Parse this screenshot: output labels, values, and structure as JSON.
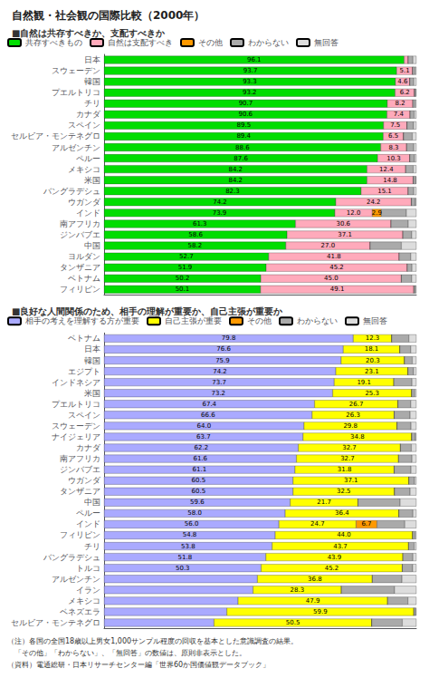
{
  "title": "自然観・社会観の国際比較（2000年）",
  "annotations": [
    "（注）各国の全国18歳以上男女1,000サンプル程度の回収を基本とした意識調査の結果。",
    "　「その他」「わからない」、「無回答」の数値は、原則非表示とした。",
    "（資料）電通総研・日本リサーチセンター編「世界60か国価値観データブック」"
  ],
  "chart_data": [
    {
      "type": "bar",
      "orientation": "horizontal",
      "stacked": true,
      "title": "■自然は共存すべきか、支配すべきか",
      "categories": [
        "日本",
        "スウェーデン",
        "韓国",
        "プエルトリコ",
        "チリ",
        "カナダ",
        "スペイン",
        "セルビア・モンテネグロ",
        "アルゼンチン",
        "ペルー",
        "メキシコ",
        "米国",
        "バングラデシュ",
        "ウガンダ",
        "インド",
        "南アフリカ",
        "ジンバブエ",
        "中国",
        "ヨルダン",
        "タンザニア",
        "ベトナム",
        "フィリピン"
      ],
      "series": [
        {
          "name": "共存すべきもの",
          "color": "#00dd00",
          "values": [
            96.1,
            93.7,
            93.3,
            93.2,
            90.7,
            90.6,
            89.5,
            89.4,
            88.6,
            87.6,
            84.2,
            84.2,
            82.3,
            74.2,
            73.9,
            61.3,
            58.6,
            58.2,
            52.7,
            51.9,
            50.2,
            50.1
          ],
          "value_labels": [
            "96.1",
            "93.7",
            "93.3",
            "93.2",
            "90.7",
            "90.6",
            "89.5",
            "89.4",
            "88.6",
            "87.6",
            "84.2",
            "84.2",
            "82.3",
            "74.2",
            "73.9",
            "61.3",
            "58.6",
            "58.2",
            "52.7",
            "51.9",
            "50.2",
            "50.1"
          ]
        },
        {
          "name": "自然は支配すべき",
          "color": "#ffaabb",
          "values": [
            1.3,
            5.1,
            4.6,
            6.2,
            8.2,
            7.4,
            7.5,
            6.5,
            8.3,
            10.3,
            12.4,
            14.8,
            15.1,
            24.2,
            12.0,
            30.6,
            37.1,
            27.0,
            41.8,
            45.2,
            45.0,
            49.1
          ],
          "value_labels": [
            null,
            "5.1",
            "4.6",
            "6.2",
            "8.2",
            "7.4",
            "7.5",
            "6.5",
            "8.3",
            "10.3",
            "12.4",
            "14.8",
            "15.1",
            "24.2",
            "12.0",
            "30.6",
            "37.1",
            "27.0",
            "41.8",
            "45.2",
            "45.0",
            "49.1"
          ]
        },
        {
          "name": "その他",
          "color": "#ff9900",
          "values": [
            0.0,
            0.0,
            0.0,
            0.0,
            0.0,
            0.0,
            0.0,
            0.0,
            0.0,
            0.0,
            0.0,
            0.0,
            0.0,
            0.0,
            2.9,
            0.0,
            0.0,
            0.0,
            0.0,
            0.0,
            0.0,
            0.0
          ],
          "value_labels": [
            null,
            null,
            null,
            null,
            null,
            null,
            null,
            null,
            null,
            null,
            null,
            null,
            null,
            null,
            "2.9",
            null,
            null,
            null,
            null,
            null,
            null,
            null
          ]
        },
        {
          "name": "わからない",
          "color": "#aaaaaa",
          "values": [
            1.5,
            0.8,
            1.3,
            0.4,
            0.7,
            1.3,
            2.1,
            2.8,
            2.3,
            1.5,
            2.4,
            0.8,
            1.8,
            1.3,
            8.0,
            5.5,
            2.8,
            10.0,
            3.7,
            1.5,
            3.3,
            0.5
          ]
        },
        {
          "name": "無回答",
          "color": "#dddddd",
          "values": [
            1.1,
            0.4,
            0.8,
            0.2,
            0.4,
            0.7,
            0.9,
            1.3,
            0.8,
            0.6,
            1.0,
            0.2,
            0.8,
            0.3,
            3.2,
            2.6,
            1.5,
            4.8,
            1.8,
            1.4,
            1.5,
            0.3
          ]
        }
      ],
      "xlim": [
        0,
        100
      ],
      "tick_labels": "y",
      "grid": false,
      "legend": "top",
      "data_labels": true
    },
    {
      "type": "bar",
      "orientation": "horizontal",
      "stacked": true,
      "title": "■良好な人間関係のため、相手の理解が重要か、自己主張が重要か",
      "categories": [
        "ベトナム",
        "日本",
        "韓国",
        "エジプト",
        "インドネシア",
        "米国",
        "プエルトリコ",
        "スペイン",
        "スウェーデン",
        "ナイジェリア",
        "カナダ",
        "南アフリカ",
        "ジンバブエ",
        "ウガンダ",
        "タンザニア",
        "中国",
        "ペルー",
        "インド",
        "フィリピン",
        "チリ",
        "バングラデシュ",
        "トルコ",
        "アルゼンチン",
        "イラン",
        "メキシコ",
        "ベネズエラ",
        "セルビア・モンテネグロ"
      ],
      "series": [
        {
          "name": "相手の考えを理解する方が重要",
          "color": "#aaaaff",
          "values": [
            79.8,
            76.6,
            75.9,
            74.2,
            73.7,
            73.2,
            67.4,
            66.6,
            64.0,
            63.7,
            62.2,
            61.6,
            61.1,
            60.5,
            60.5,
            59.6,
            58.0,
            56.0,
            54.8,
            53.8,
            51.8,
            50.3,
            49.1,
            47.7,
            42.9,
            39.3,
            35.2
          ],
          "value_labels": [
            "79.8",
            "76.6",
            "75.9",
            "74.2",
            "73.7",
            "73.2",
            "67.4",
            "66.6",
            "64.0",
            "63.7",
            "62.2",
            "61.6",
            "61.1",
            "60.5",
            "60.5",
            "59.6",
            "58.0",
            "56.0",
            "54.8",
            "53.8",
            "51.8",
            "50.3",
            null,
            null,
            null,
            null,
            null
          ]
        },
        {
          "name": "自己主張が重要",
          "color": "#ffff00",
          "values": [
            12.3,
            18.1,
            20.3,
            23.1,
            19.1,
            25.3,
            26.7,
            26.3,
            29.8,
            34.8,
            32.7,
            32.7,
            31.8,
            37.1,
            32.5,
            21.7,
            36.4,
            24.7,
            44.0,
            43.7,
            43.9,
            45.2,
            36.8,
            28.3,
            47.9,
            59.9,
            50.5
          ],
          "value_labels": [
            "12.3",
            "18.1",
            "20.3",
            "23.1",
            "19.1",
            "25.3",
            "26.7",
            "26.3",
            "29.8",
            "34.8",
            "32.7",
            "32.7",
            "31.8",
            "37.1",
            "32.5",
            "21.7",
            "36.4",
            "24.7",
            "44.0",
            "43.7",
            "43.9",
            "45.2",
            "36.8",
            "28.3",
            "47.9",
            "59.9",
            "50.5"
          ]
        },
        {
          "name": "その他",
          "color": "#ff9900",
          "values": [
            0.0,
            0.0,
            0.0,
            0.0,
            0.0,
            0.0,
            0.0,
            0.0,
            0.0,
            0.0,
            0.0,
            0.0,
            0.0,
            0.0,
            0.0,
            0.0,
            0.0,
            6.7,
            0.0,
            0.0,
            0.0,
            0.0,
            0.0,
            0.0,
            0.0,
            0.0,
            0.0
          ],
          "value_labels": [
            null,
            null,
            null,
            null,
            null,
            null,
            null,
            null,
            null,
            null,
            null,
            null,
            null,
            null,
            null,
            null,
            null,
            "6.7",
            null,
            null,
            null,
            null,
            null,
            null,
            null,
            null,
            null
          ]
        },
        {
          "name": "わからない",
          "color": "#aaaaaa",
          "values": [
            5.5,
            3.5,
            2.5,
            1.8,
            5.8,
            1.0,
            4.1,
            5.1,
            4.5,
            1.2,
            3.5,
            4.3,
            5.4,
            1.8,
            5.0,
            13.5,
            4.5,
            8.9,
            0.8,
            1.8,
            3.2,
            3.3,
            9.5,
            17.0,
            6.5,
            0.6,
            9.8
          ]
        },
        {
          "name": "無回答",
          "color": "#dddddd",
          "values": [
            2.4,
            1.8,
            1.3,
            0.9,
            1.4,
            0.5,
            1.8,
            2.0,
            1.7,
            0.3,
            1.6,
            1.4,
            1.7,
            0.6,
            2.0,
            5.2,
            1.1,
            3.7,
            0.4,
            0.7,
            1.1,
            1.2,
            4.6,
            7.0,
            2.7,
            0.2,
            4.5
          ]
        }
      ],
      "xlim": [
        0,
        100
      ],
      "tick_labels": "y",
      "grid": false,
      "legend": "top",
      "data_labels": true
    }
  ]
}
